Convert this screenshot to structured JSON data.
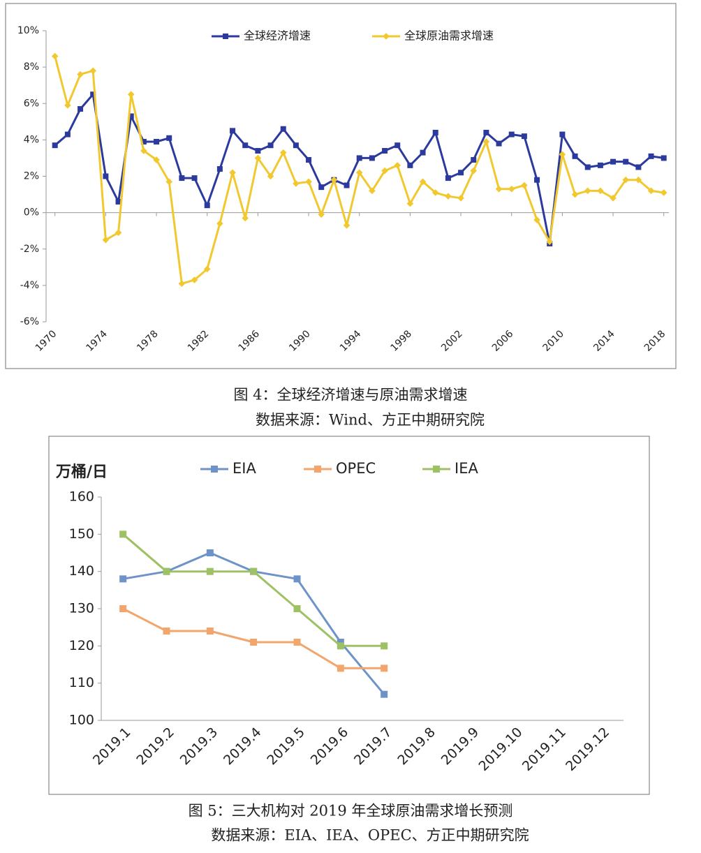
{
  "chart_data": [
    {
      "type": "line",
      "caption": "图 4：全球经济增速与原油需求增速",
      "source": "数据来源：Wind、方正中期研究院",
      "x": [
        1970,
        1971,
        1972,
        1973,
        1974,
        1975,
        1976,
        1977,
        1978,
        1979,
        1980,
        1981,
        1982,
        1983,
        1984,
        1985,
        1986,
        1987,
        1988,
        1989,
        1990,
        1991,
        1992,
        1993,
        1994,
        1995,
        1996,
        1997,
        1998,
        1999,
        2000,
        2001,
        2002,
        2003,
        2004,
        2005,
        2006,
        2007,
        2008,
        2009,
        2010,
        2011,
        2012,
        2013,
        2014,
        2015,
        2016,
        2017,
        2018
      ],
      "xlim": [
        1969.3,
        2018.4
      ],
      "xticks": [
        1970,
        1974,
        1978,
        1982,
        1986,
        1990,
        1994,
        1998,
        2002,
        2006,
        2010,
        2014,
        2018
      ],
      "ylim": [
        -6,
        10
      ],
      "yticks": [
        {
          "value": -6,
          "label": "-6%"
        },
        {
          "value": -4,
          "label": "-4%"
        },
        {
          "value": -2,
          "label": "-2%"
        },
        {
          "value": 0,
          "label": "0%"
        },
        {
          "value": 2,
          "label": "2%"
        },
        {
          "value": 4,
          "label": "4%"
        },
        {
          "value": 6,
          "label": "6%"
        },
        {
          "value": 8,
          "label": "8%"
        },
        {
          "value": 10,
          "label": "10%"
        }
      ],
      "grid": false,
      "series": [
        {
          "name": "全球经济增速",
          "color": "#2b3a9c",
          "marker": "square",
          "values": [
            3.7,
            4.3,
            5.7,
            6.5,
            2.0,
            0.6,
            5.3,
            3.9,
            3.9,
            4.1,
            1.9,
            1.9,
            0.4,
            2.4,
            4.5,
            3.7,
            3.4,
            3.7,
            4.6,
            3.7,
            2.9,
            1.4,
            1.8,
            1.5,
            3.0,
            3.0,
            3.4,
            3.7,
            2.6,
            3.3,
            4.4,
            1.9,
            2.2,
            2.9,
            4.4,
            3.8,
            4.3,
            4.2,
            1.8,
            -1.7,
            4.3,
            3.1,
            2.5,
            2.6,
            2.8,
            2.8,
            2.5,
            3.1,
            3.0
          ]
        },
        {
          "name": "全球原油需求增速",
          "color": "#f2c82f",
          "marker": "diamond",
          "values": [
            8.6,
            5.9,
            7.6,
            7.8,
            -1.5,
            -1.1,
            6.5,
            3.4,
            2.9,
            1.7,
            -3.9,
            -3.7,
            -3.1,
            -0.6,
            2.2,
            -0.3,
            3.0,
            2.0,
            3.3,
            1.6,
            1.7,
            -0.1,
            1.8,
            -0.7,
            2.2,
            1.2,
            2.3,
            2.6,
            0.5,
            1.7,
            1.1,
            0.9,
            0.8,
            2.3,
            3.9,
            1.3,
            1.3,
            1.5,
            -0.4,
            -1.6,
            3.2,
            1.0,
            1.2,
            1.2,
            0.8,
            1.8,
            1.8,
            1.2,
            1.1
          ]
        }
      ]
    },
    {
      "type": "line",
      "caption": "图 5：三大机构对 2019 年全球原油需求增长预测",
      "source": "数据来源：EIA、IEA、OPEC、方正中期研究院",
      "ylabel": "万桶/日",
      "categories": [
        "2019.1",
        "2019.2",
        "2019.3",
        "2019.4",
        "2019.5",
        "2019.6",
        "2019.7",
        "2019.8",
        "2019.9",
        "2019.10",
        "2019.11",
        "2019.12"
      ],
      "ylim": [
        100,
        160
      ],
      "yticks": [
        100,
        110,
        120,
        130,
        140,
        150,
        160
      ],
      "grid": false,
      "series": [
        {
          "name": "EIA",
          "color": "#6d93c9",
          "marker": "square",
          "values": [
            138,
            140,
            145,
            140,
            138,
            121,
            107,
            null,
            null,
            null,
            null,
            null
          ]
        },
        {
          "name": "OPEC",
          "color": "#f3a56b",
          "marker": "square",
          "values": [
            130,
            124,
            124,
            121,
            121,
            114,
            114,
            null,
            null,
            null,
            null,
            null
          ]
        },
        {
          "name": "IEA",
          "color": "#9dc163",
          "marker": "square",
          "values": [
            150,
            140,
            140,
            140,
            130,
            120,
            120,
            null,
            null,
            null,
            null,
            null
          ]
        }
      ]
    }
  ]
}
